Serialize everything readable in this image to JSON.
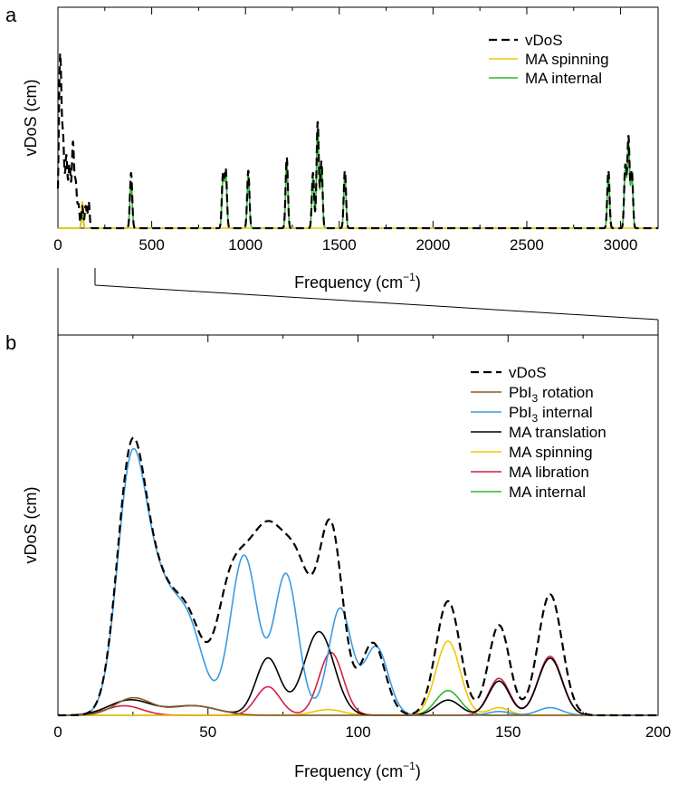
{
  "panel_labels": {
    "a": "a",
    "b": "b"
  },
  "colors": {
    "vDoS": "#000000",
    "PbI3_rotation": "#8b5a2b",
    "PbI3_internal": "#3b9ae1",
    "MA_translation": "#000000",
    "MA_spinning": "#f2c500",
    "MA_libration": "#d21f45",
    "MA_internal": "#2fb52f"
  },
  "chart_data": [
    {
      "type": "line",
      "panel": "a",
      "xlabel": "Frequency (cm",
      "xlabel_sup": "−1",
      "xlabel_close": ")",
      "ylabel": "vDoS (cm)",
      "xlim": [
        0,
        3200
      ],
      "ylim": [
        0,
        1.0
      ],
      "xticks": [
        0,
        500,
        1000,
        1500,
        2000,
        2500,
        3000
      ],
      "grid": false,
      "legend_position": "top-right",
      "legend": [
        "vDoS",
        "MA spinning",
        "MA internal"
      ],
      "series": [
        {
          "name": "vDoS",
          "style": "dashed",
          "peaks": [
            [
              12,
              0.78,
              7
            ],
            [
              28,
              0.36,
              6
            ],
            [
              45,
              0.32,
              6
            ],
            [
              62,
              0.28,
              6
            ],
            [
              80,
              0.38,
              6
            ],
            [
              95,
              0.2,
              6
            ],
            [
              110,
              0.1,
              5
            ],
            [
              130,
              0.1,
              5
            ],
            [
              148,
              0.1,
              5
            ],
            [
              164,
              0.12,
              5
            ],
            [
              390,
              0.25,
              6
            ],
            [
              880,
              0.24,
              6
            ],
            [
              895,
              0.26,
              6
            ],
            [
              1015,
              0.26,
              6
            ],
            [
              1220,
              0.32,
              6
            ],
            [
              1360,
              0.25,
              6
            ],
            [
              1385,
              0.48,
              6
            ],
            [
              1405,
              0.3,
              6
            ],
            [
              1530,
              0.26,
              6
            ],
            [
              2935,
              0.26,
              6
            ],
            [
              3025,
              0.28,
              6
            ],
            [
              3042,
              0.41,
              6
            ],
            [
              3060,
              0.26,
              6
            ]
          ]
        },
        {
          "name": "MA spinning",
          "peaks": [
            [
              130,
              0.12,
              5
            ]
          ]
        },
        {
          "name": "MA internal",
          "peaks": [
            [
              130,
              0.07,
              5
            ],
            [
              390,
              0.21,
              6
            ],
            [
              880,
              0.22,
              6
            ],
            [
              895,
              0.24,
              6
            ],
            [
              1015,
              0.24,
              6
            ],
            [
              1220,
              0.3,
              6
            ],
            [
              1360,
              0.23,
              6
            ],
            [
              1385,
              0.46,
              6
            ],
            [
              1405,
              0.28,
              6
            ],
            [
              1530,
              0.24,
              6
            ],
            [
              2935,
              0.24,
              6
            ],
            [
              3025,
              0.26,
              6
            ],
            [
              3042,
              0.39,
              6
            ],
            [
              3060,
              0.24,
              6
            ]
          ]
        }
      ]
    },
    {
      "type": "line",
      "panel": "b",
      "xlabel": "Frequency (cm",
      "xlabel_sup": "−1",
      "xlabel_close": ")",
      "ylabel": "vDoS (cm)",
      "xlim": [
        0,
        200
      ],
      "ylim": [
        0,
        1.0
      ],
      "xticks": [
        0,
        50,
        100,
        150,
        200
      ],
      "grid": false,
      "legend_position": "top-right",
      "legend": [
        "vDoS",
        "PbI3 rotation",
        "PbI3 internal",
        "MA translation",
        "MA spinning",
        "MA libration",
        "MA internal"
      ],
      "series": [
        {
          "name": "vDoS",
          "style": "dashed",
          "peaks": [
            [
              24,
              0.53,
              4.5
            ],
            [
              32,
              0.35,
              7
            ],
            [
              44,
              0.19,
              5
            ],
            [
              56,
              0.13,
              4
            ],
            [
              62,
              0.34,
              6
            ],
            [
              71,
              0.33,
              5
            ],
            [
              80,
              0.35,
              5
            ],
            [
              91,
              0.48,
              4
            ],
            [
              105,
              0.19,
              4
            ],
            [
              130,
              0.3,
              4
            ],
            [
              147,
              0.237,
              3.5
            ],
            [
              164,
              0.318,
              4
            ]
          ]
        },
        {
          "name": "PbI3 rotation",
          "peaks": [
            [
              25,
              0.045,
              6
            ],
            [
              45,
              0.025,
              8
            ]
          ]
        },
        {
          "name": "PbI3 internal",
          "peaks": [
            [
              24,
              0.5,
              4.5
            ],
            [
              32,
              0.35,
              7
            ],
            [
              44,
              0.18,
              5
            ],
            [
              62,
              0.42,
              4.5
            ],
            [
              76,
              0.37,
              4
            ],
            [
              94,
              0.28,
              3.8
            ],
            [
              106,
              0.18,
              4
            ],
            [
              147,
              0.01,
              3.5
            ],
            [
              164,
              0.02,
              4
            ]
          ]
        },
        {
          "name": "MA translation",
          "peaks": [
            [
              24,
              0.04,
              7
            ],
            [
              45,
              0.025,
              8
            ],
            [
              70,
              0.15,
              4
            ],
            [
              87,
              0.22,
              5
            ],
            [
              130,
              0.04,
              4
            ],
            [
              147,
              0.09,
              3.5
            ],
            [
              164,
              0.15,
              4
            ]
          ]
        },
        {
          "name": "MA spinning",
          "peaks": [
            [
              90,
              0.015,
              5
            ],
            [
              130,
              0.195,
              4
            ],
            [
              147,
              0.02,
              3.5
            ]
          ]
        },
        {
          "name": "MA libration",
          "peaks": [
            [
              22,
              0.025,
              6
            ],
            [
              70,
              0.075,
              4
            ],
            [
              91,
              0.165,
              4
            ],
            [
              147,
              0.097,
              3.5
            ],
            [
              164,
              0.155,
              4
            ]
          ]
        },
        {
          "name": "MA internal",
          "peaks": [
            [
              130,
              0.065,
              4
            ]
          ]
        }
      ]
    }
  ]
}
